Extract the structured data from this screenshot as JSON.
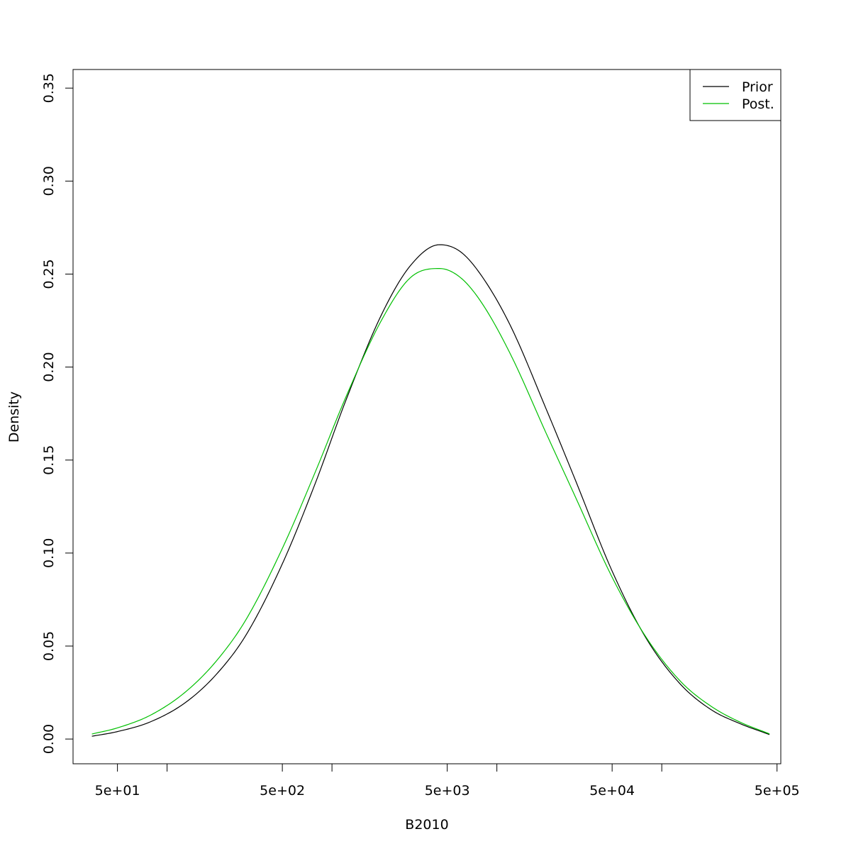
{
  "chart_data": {
    "type": "line",
    "title": "",
    "xlabel": "B2010",
    "ylabel": "Density",
    "x_scale": "log10",
    "xlim": [
      26.9,
      527000
    ],
    "ylim": [
      -0.0133,
      0.36
    ],
    "x_ticks": [
      {
        "value": 50,
        "label": "5e+01"
      },
      {
        "value": 100,
        "label": ""
      },
      {
        "value": 500,
        "label": "5e+02"
      },
      {
        "value": 1000,
        "label": ""
      },
      {
        "value": 5000,
        "label": "5e+03"
      },
      {
        "value": 10000,
        "label": ""
      },
      {
        "value": 50000,
        "label": "5e+04"
      },
      {
        "value": 100000,
        "label": ""
      },
      {
        "value": 500000,
        "label": "5e+05"
      }
    ],
    "y_ticks": [
      {
        "value": 0.0,
        "label": "0.00"
      },
      {
        "value": 0.05,
        "label": "0.05"
      },
      {
        "value": 0.1,
        "label": "0.10"
      },
      {
        "value": 0.15,
        "label": "0.15"
      },
      {
        "value": 0.2,
        "label": "0.20"
      },
      {
        "value": 0.25,
        "label": "0.25"
      },
      {
        "value": 0.3,
        "label": "0.30"
      },
      {
        "value": 0.35,
        "label": "0.35"
      }
    ],
    "grid": false,
    "legend_position": "top-right",
    "series": [
      {
        "name": "Prior",
        "color": "#000000",
        "x": [
          35,
          50,
          80,
          130,
          200,
          300,
          500,
          800,
          1200,
          2000,
          3000,
          4500,
          6000,
          8000,
          12000,
          20000,
          30000,
          50000,
          80000,
          130000,
          200000,
          300000,
          450000
        ],
        "y": [
          0.0015,
          0.004,
          0.0094,
          0.0198,
          0.035,
          0.0557,
          0.0942,
          0.1385,
          0.1809,
          0.2283,
          0.2547,
          0.2658,
          0.2621,
          0.2496,
          0.2228,
          0.177,
          0.139,
          0.0903,
          0.0545,
          0.0294,
          0.0157,
          0.0082,
          0.0024
        ]
      },
      {
        "name": "Post.",
        "color": "#00c000",
        "x": [
          35,
          50,
          80,
          130,
          200,
          300,
          500,
          800,
          1200,
          2000,
          3000,
          4500,
          6000,
          8000,
          12000,
          20000,
          30000,
          50000,
          80000,
          130000,
          200000,
          300000,
          450000
        ],
        "y": [
          0.0027,
          0.006,
          0.013,
          0.0255,
          0.0422,
          0.064,
          0.1025,
          0.1445,
          0.1828,
          0.2253,
          0.2482,
          0.253,
          0.2482,
          0.2352,
          0.2075,
          0.164,
          0.13,
          0.087,
          0.055,
          0.031,
          0.0175,
          0.009,
          0.0028
        ]
      }
    ]
  }
}
